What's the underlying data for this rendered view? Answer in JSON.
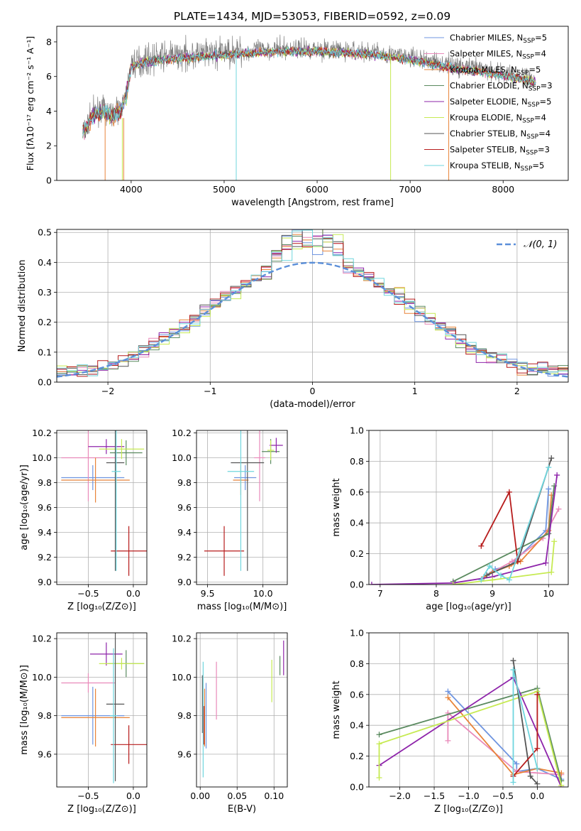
{
  "figure": {
    "title": "PLATE=1434, MJD=53053, FIBERID=0592, z=0.09"
  },
  "colors": {
    "Chabrier MILES": "#6f95e0",
    "Salpeter MILES": "#e98aba",
    "Kroupa MILES": "#e8843a",
    "Chabrier ELODIE": "#5a8a5f",
    "Salpeter ELODIE": "#8e24aa",
    "Kroupa ELODIE": "#c6ea52",
    "Chabrier STELIB": "#555555",
    "Salpeter STELIB": "#b71c1c",
    "Kroupa STELIB": "#6fd6de",
    "data": "#808080",
    "normal": "#5b8fd9"
  },
  "chart_data": [
    {
      "id": "spectrum",
      "type": "line",
      "xlabel": "wavelength [Angstrom, rest frame]",
      "ylabel": "Flux [fλ10⁻¹⁷ erg cm⁻² s⁻¹ A⁻¹]",
      "xlim": [
        3200,
        8700
      ],
      "ylim": [
        0,
        8.9
      ],
      "xticks": [
        4000,
        5000,
        6000,
        7000,
        8000
      ],
      "yticks": [
        0,
        2,
        4,
        6,
        8
      ],
      "legend_placement": "right",
      "continuum": {
        "x": [
          3500,
          3600,
          3700,
          3800,
          3900,
          3950,
          4000,
          4100,
          4300,
          4500,
          4800,
          5000,
          5300,
          5600,
          6000,
          6300,
          6600,
          6900,
          7200,
          7500,
          7800,
          8100,
          8350
        ],
        "y": [
          3.0,
          4.0,
          4.1,
          3.8,
          4.3,
          5.0,
          6.7,
          6.9,
          7.1,
          7.2,
          7.3,
          7.4,
          7.5,
          7.6,
          7.6,
          7.5,
          7.4,
          7.2,
          6.9,
          6.6,
          6.4,
          6.1,
          5.8
        ]
      },
      "series": [
        {
          "name": "Chabrier MILES, N",
          "sub": "SSP",
          "suffix": "=5"
        },
        {
          "name": "Salpeter MILES, N",
          "sub": "SSP",
          "suffix": "=4"
        },
        {
          "name": "Kroupa MILES, N",
          "sub": "SSP",
          "suffix": "=5"
        },
        {
          "name": "Chabrier ELODIE, N",
          "sub": "SSP",
          "suffix": "=3"
        },
        {
          "name": "Salpeter ELODIE, N",
          "sub": "SSP",
          "suffix": "=5"
        },
        {
          "name": "Kroupa ELODIE, N",
          "sub": "SSP",
          "suffix": "=4"
        },
        {
          "name": "Chabrier STELIB, N",
          "sub": "SSP",
          "suffix": "=4"
        },
        {
          "name": "Salpeter STELIB, N",
          "sub": "SSP",
          "suffix": "=3"
        },
        {
          "name": "Kroupa STELIB, N",
          "sub": "SSP",
          "suffix": "=5"
        }
      ]
    },
    {
      "id": "residuals",
      "type": "line",
      "xlabel": "(data-model)/error",
      "ylabel": "Normed distribution",
      "xlim": [
        -2.5,
        2.5
      ],
      "ylim": [
        0,
        0.51
      ],
      "xticks": [
        -2,
        -1,
        0,
        1,
        2
      ],
      "yticks": [
        0.0,
        0.1,
        0.2,
        0.3,
        0.4,
        0.5
      ],
      "grid": true,
      "legend": "𝒩(0, 1)",
      "legend_placement": "top-right",
      "bins": 50
    },
    {
      "id": "z_age",
      "type": "scatter",
      "xlabel": "Z [log₁₀(Z/Z⊙)]",
      "ylabel": "age  [log₁₀(age/yr)]",
      "xlim": [
        -0.85,
        0.15
      ],
      "ylim": [
        8.98,
        10.22
      ],
      "xticks": [
        -0.5,
        0.0
      ],
      "yticks": [
        9.0,
        9.2,
        9.4,
        9.6,
        9.8,
        10.0,
        10.2
      ],
      "grid": true,
      "points": [
        {
          "series": "Chabrier MILES",
          "x": -0.45,
          "xerr": 0.35,
          "y": 9.84,
          "yerr": 0.1
        },
        {
          "series": "Salpeter MILES",
          "x": -0.5,
          "xerr": 0.3,
          "y": 10.0,
          "yerr": 0.35
        },
        {
          "series": "Kroupa MILES",
          "x": -0.42,
          "xerr": 0.38,
          "y": 9.82,
          "yerr": 0.18
        },
        {
          "series": "Chabrier ELODIE",
          "x": -0.08,
          "xerr": 0.18,
          "y": 10.04,
          "yerr": 0.1
        },
        {
          "series": "Salpeter ELODIE",
          "x": -0.3,
          "xerr": 0.2,
          "y": 10.09,
          "yerr": 0.06
        },
        {
          "series": "Kroupa ELODIE",
          "x": -0.13,
          "xerr": 0.25,
          "y": 10.07,
          "yerr": 0.08
        },
        {
          "series": "Chabrier STELIB",
          "x": -0.2,
          "xerr": 0.1,
          "y": 9.96,
          "yerr": 0.87
        },
        {
          "series": "Salpeter STELIB",
          "x": -0.05,
          "xerr": 0.2,
          "y": 9.25,
          "yerr": 0.2
        },
        {
          "series": "Kroupa STELIB",
          "x": -0.19,
          "xerr": 0.05,
          "y": 9.89,
          "yerr": 0.8
        }
      ]
    },
    {
      "id": "mass_age",
      "type": "scatter",
      "xlabel": "mass [log₁₀(M/M⊙)]",
      "ylabel": "",
      "xlim": [
        9.4,
        10.22
      ],
      "ylim": [
        8.98,
        10.22
      ],
      "xticks": [
        9.5,
        10.0
      ],
      "yticks": [
        9.0,
        9.2,
        9.4,
        9.6,
        9.8,
        10.0,
        10.2
      ],
      "grid": true,
      "points": [
        {
          "series": "Chabrier MILES",
          "x": 9.84,
          "xerr": 0.1,
          "y": 9.84,
          "yerr": 0.1
        },
        {
          "series": "Salpeter MILES",
          "x": 9.97,
          "xerr": 0.05,
          "y": 10.0,
          "yerr": 0.35
        },
        {
          "series": "Kroupa MILES",
          "x": 9.8,
          "xerr": 0.07,
          "y": 9.82,
          "yerr": 0.12
        },
        {
          "series": "Chabrier ELODIE",
          "x": 10.07,
          "xerr": 0.08,
          "y": 10.05,
          "yerr": 0.1
        },
        {
          "series": "Salpeter ELODIE",
          "x": 10.12,
          "xerr": 0.06,
          "y": 10.1,
          "yerr": 0.06
        },
        {
          "series": "Kroupa ELODIE",
          "x": 10.07,
          "xerr": 0.03,
          "y": 10.06,
          "yerr": 0.08
        },
        {
          "series": "Chabrier STELIB",
          "x": 9.86,
          "xerr": 0.15,
          "y": 9.96,
          "yerr": 0.87
        },
        {
          "series": "Salpeter STELIB",
          "x": 9.65,
          "xerr": 0.18,
          "y": 9.25,
          "yerr": 0.2
        },
        {
          "series": "Kroupa STELIB",
          "x": 9.8,
          "xerr": 0.12,
          "y": 9.89,
          "yerr": 0.8
        }
      ]
    },
    {
      "id": "age_weight",
      "type": "line",
      "xlabel": "age  [log₁₀(age/yr)]",
      "ylabel": "mass weight",
      "xlim": [
        6.8,
        10.35
      ],
      "ylim": [
        0,
        1.0
      ],
      "xticks": [
        7,
        8,
        9,
        10
      ],
      "yticks": [
        0.0,
        0.2,
        0.4,
        0.6,
        0.8,
        1.0
      ],
      "grid": true,
      "series": [
        {
          "series": "Chabrier MILES",
          "x": [
            8.85,
            9.05,
            9.3,
            9.95,
            10.0
          ],
          "y": [
            0.05,
            0.1,
            0.12,
            0.35,
            0.62
          ]
        },
        {
          "series": "Salpeter MILES",
          "x": [
            9.0,
            9.35,
            9.9,
            10.18
          ],
          "y": [
            0.08,
            0.15,
            0.3,
            0.49
          ]
        },
        {
          "series": "Kroupa MILES",
          "x": [
            8.85,
            9.0,
            9.3,
            9.5,
            10.0,
            10.05
          ],
          "y": [
            0.05,
            0.08,
            0.12,
            0.15,
            0.35,
            0.58
          ]
        },
        {
          "series": "Chabrier ELODIE",
          "x": [
            8.3,
            10.0,
            10.1
          ],
          "y": [
            0.02,
            0.33,
            0.64
          ]
        },
        {
          "series": "Salpeter ELODIE",
          "x": [
            6.85,
            8.3,
            9.0,
            9.95,
            10.15
          ],
          "y": [
            0.0,
            0.01,
            0.05,
            0.14,
            0.71
          ]
        },
        {
          "series": "Kroupa ELODIE",
          "x": [
            8.3,
            9.0,
            10.05,
            10.1
          ],
          "y": [
            0.0,
            0.03,
            0.08,
            0.28
          ]
        },
        {
          "series": "Chabrier STELIB",
          "x": [
            8.9,
            9.45,
            10.05
          ],
          "y": [
            0.06,
            0.15,
            0.82
          ]
        },
        {
          "series": "Salpeter STELIB",
          "x": [
            8.8,
            9.3,
            9.45
          ],
          "y": [
            0.25,
            0.6,
            0.15
          ]
        },
        {
          "series": "Kroupa STELIB",
          "x": [
            8.8,
            8.95,
            9.15,
            9.3,
            10.0
          ],
          "y": [
            0.03,
            0.12,
            0.06,
            0.03,
            0.76
          ]
        }
      ]
    },
    {
      "id": "z_mass",
      "type": "scatter",
      "xlabel": "Z [log₁₀(Z/Z⊙)]",
      "ylabel": "mass [log₁₀(M/M⊙)]",
      "xlim": [
        -0.85,
        0.15
      ],
      "ylim": [
        9.43,
        10.23
      ],
      "xticks": [
        -0.5,
        0.0
      ],
      "yticks": [
        9.6,
        9.8,
        10.0,
        10.2
      ],
      "grid": true,
      "points": [
        {
          "series": "Chabrier MILES",
          "x": -0.45,
          "xerr": 0.35,
          "y": 9.8,
          "yerr": 0.15
        },
        {
          "series": "Salpeter MILES",
          "x": -0.5,
          "xerr": 0.3,
          "y": 9.97,
          "yerr": 0.05
        },
        {
          "series": "Kroupa MILES",
          "x": -0.42,
          "xerr": 0.38,
          "y": 9.79,
          "yerr": 0.15
        },
        {
          "series": "Chabrier ELODIE",
          "x": -0.08,
          "xerr": 0.2,
          "y": 10.07,
          "yerr": 0.07
        },
        {
          "series": "Salpeter ELODIE",
          "x": -0.3,
          "xerr": 0.18,
          "y": 10.12,
          "yerr": 0.06
        },
        {
          "series": "Kroupa ELODIE",
          "x": -0.13,
          "xerr": 0.25,
          "y": 10.07,
          "yerr": 0.03
        },
        {
          "series": "Chabrier STELIB",
          "x": -0.2,
          "xerr": 0.1,
          "y": 9.86,
          "yerr": 0.4
        },
        {
          "series": "Salpeter STELIB",
          "x": -0.05,
          "xerr": 0.2,
          "y": 9.65,
          "yerr": 0.1
        },
        {
          "series": "Kroupa STELIB",
          "x": -0.22,
          "xerr": 0.04,
          "y": 9.8,
          "yerr": 0.35
        }
      ]
    },
    {
      "id": "ebv_mass",
      "type": "scatter",
      "xlabel": "E(B-V)",
      "ylabel": "",
      "xlim": [
        -0.005,
        0.118
      ],
      "ylim": [
        9.43,
        10.23
      ],
      "xticks": [
        0.0,
        0.05,
        0.1
      ],
      "yticks": [
        9.6,
        9.8,
        10.0,
        10.2
      ],
      "grid": true,
      "points": [
        {
          "series": "Chabrier MILES",
          "x": 0.008,
          "y": 9.8,
          "yerr": 0.17
        },
        {
          "series": "Salpeter MILES",
          "x": 0.022,
          "y": 9.93,
          "yerr": 0.15
        },
        {
          "series": "Kroupa MILES",
          "x": 0.006,
          "y": 9.79,
          "yerr": 0.15
        },
        {
          "series": "Chabrier ELODIE",
          "x": 0.108,
          "y": 10.06,
          "yerr": 0.05
        },
        {
          "series": "Salpeter ELODIE",
          "x": 0.113,
          "y": 10.1,
          "yerr": 0.09
        },
        {
          "series": "Kroupa ELODIE",
          "x": 0.097,
          "y": 9.98,
          "yerr": 0.11
        },
        {
          "series": "Chabrier STELIB",
          "x": 0.003,
          "y": 9.86,
          "yerr": 0.15
        },
        {
          "series": "Salpeter STELIB",
          "x": 0.005,
          "y": 9.75,
          "yerr": 0.1
        },
        {
          "series": "Kroupa STELIB",
          "x": 0.004,
          "y": 9.78,
          "yerr": 0.3
        }
      ]
    },
    {
      "id": "z_weight",
      "type": "line",
      "xlabel": "Z [log₁₀(Z/Z⊙)]",
      "ylabel": "mass weight",
      "xlim": [
        -2.45,
        0.45
      ],
      "ylim": [
        0,
        1.0
      ],
      "xticks": [
        -2.0,
        -1.5,
        -1.0,
        -0.5,
        0.0
      ],
      "yticks": [
        0.0,
        0.2,
        0.4,
        0.6,
        0.8,
        1.0
      ],
      "grid": true,
      "series": [
        {
          "series": "Chabrier MILES",
          "x": [
            -1.3,
            -0.3,
            -0.3,
            0.0,
            0.35
          ],
          "y": [
            0.62,
            0.15,
            0.1,
            0.12,
            0.05
          ]
        },
        {
          "series": "Salpeter MILES",
          "x": [
            -1.3,
            -1.3,
            -0.3,
            0.35
          ],
          "y": [
            0.3,
            0.48,
            0.1,
            0.08
          ]
        },
        {
          "series": "Kroupa MILES",
          "x": [
            -1.3,
            -0.35,
            0.0,
            0.35
          ],
          "y": [
            0.58,
            0.08,
            0.12,
            0.09
          ]
        },
        {
          "series": "Chabrier ELODIE",
          "x": [
            -2.3,
            0.0,
            0.35
          ],
          "y": [
            0.34,
            0.64,
            0.04
          ]
        },
        {
          "series": "Salpeter ELODIE",
          "x": [
            -2.3,
            -0.35,
            0.35
          ],
          "y": [
            0.14,
            0.71,
            0.0
          ]
        },
        {
          "series": "Kroupa ELODIE",
          "x": [
            -2.3,
            -2.3,
            0.0,
            0.35
          ],
          "y": [
            0.06,
            0.28,
            0.62,
            0.01
          ]
        },
        {
          "series": "Chabrier STELIB",
          "x": [
            -0.35,
            -0.1,
            0.0
          ],
          "y": [
            0.82,
            0.07,
            0.02
          ]
        },
        {
          "series": "Salpeter STELIB",
          "x": [
            -0.35,
            0.0,
            0.0
          ],
          "y": [
            0.07,
            0.25,
            0.6
          ]
        },
        {
          "series": "Kroupa STELIB",
          "x": [
            -0.35,
            -0.35,
            0.0
          ],
          "y": [
            0.03,
            0.76,
            0.12
          ]
        }
      ]
    }
  ]
}
